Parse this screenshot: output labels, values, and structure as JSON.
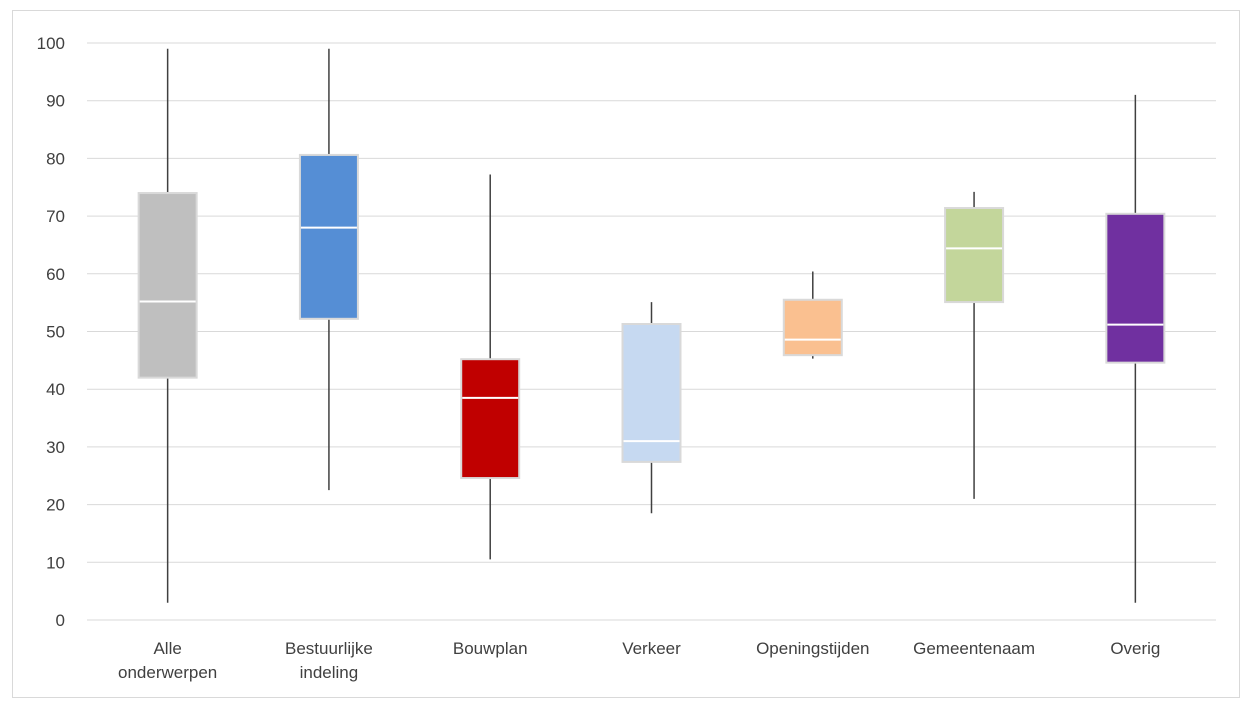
{
  "chart_data": {
    "type": "boxplot",
    "title": "",
    "xlabel": "",
    "ylabel": "",
    "ylim": [
      0,
      100
    ],
    "yticks": [
      0,
      10,
      20,
      30,
      40,
      50,
      60,
      70,
      80,
      90,
      100
    ],
    "grid": true,
    "legend": "none",
    "categories": [
      {
        "label_lines": [
          "Alle",
          "onderwerpen"
        ],
        "color": "#bfbfbf",
        "min": 3,
        "q1": 42,
        "median": 55.2,
        "q3": 74,
        "max": 99
      },
      {
        "label_lines": [
          "Bestuurlijke",
          "indeling"
        ],
        "color": "#558ed5",
        "min": 22.5,
        "q1": 52.2,
        "median": 68,
        "q3": 80.6,
        "max": 99
      },
      {
        "label_lines": [
          "Bouwplan"
        ],
        "color": "#c00000",
        "min": 10.5,
        "q1": 24.6,
        "median": 38.5,
        "q3": 45.2,
        "max": 77.2
      },
      {
        "label_lines": [
          "Verkeer"
        ],
        "color": "#c6d9f1",
        "min": 18.5,
        "q1": 27.4,
        "median": 31,
        "q3": 51.3,
        "max": 55.1
      },
      {
        "label_lines": [
          "Openingstijden"
        ],
        "color": "#fac090",
        "min": 45.3,
        "q1": 45.9,
        "median": 48.6,
        "q3": 55.5,
        "max": 60.4
      },
      {
        "label_lines": [
          "Gemeentenaam"
        ],
        "color": "#c3d69b",
        "min": 21,
        "q1": 55.1,
        "median": 64.4,
        "q3": 71.4,
        "max": 74.2
      },
      {
        "label_lines": [
          "Overig"
        ],
        "color": "#7030a0",
        "min": 3,
        "q1": 44.6,
        "median": 51.2,
        "q3": 70.4,
        "max": 91
      }
    ],
    "colors": {
      "grid": "#d9d9d9",
      "whisker": "#404040",
      "box_border": "#d9d9d9",
      "median": "#ffffff",
      "text": "#404040"
    }
  }
}
